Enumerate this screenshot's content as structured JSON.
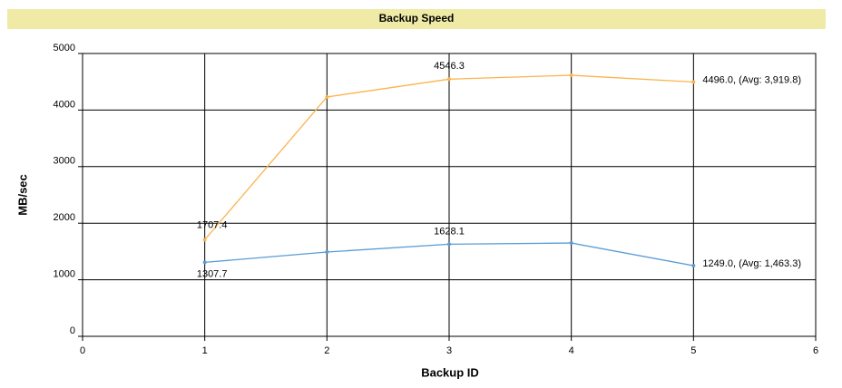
{
  "chart_data": {
    "type": "line",
    "title": "Backup Speed",
    "x_label": "Backup ID",
    "y_label": "MB/sec",
    "xlim": [
      0,
      6
    ],
    "xticks": [
      0,
      1,
      2,
      3,
      4,
      5,
      6
    ],
    "ylim": [
      0,
      5000
    ],
    "yticks": [
      0,
      1000,
      2000,
      3000,
      4000,
      5000
    ],
    "grid": true,
    "x": [
      1,
      2,
      3,
      4,
      5
    ],
    "series": [
      {
        "color": "#fbb34c",
        "values": [
          1707.4,
          4231,
          4546.3,
          4615,
          4496.0
        ],
        "value_labels": [
          "1707.4",
          null,
          "4546.3",
          null,
          "4496.0, (Avg: 3,919.8)"
        ]
      },
      {
        "color": "#5b9bd5",
        "values": [
          1307.7,
          1490,
          1628.1,
          1650,
          1249.0
        ],
        "value_labels": [
          "1307.7",
          null,
          "1628.1",
          null,
          "1249.0, (Avg: 1,463.3)"
        ]
      }
    ]
  }
}
